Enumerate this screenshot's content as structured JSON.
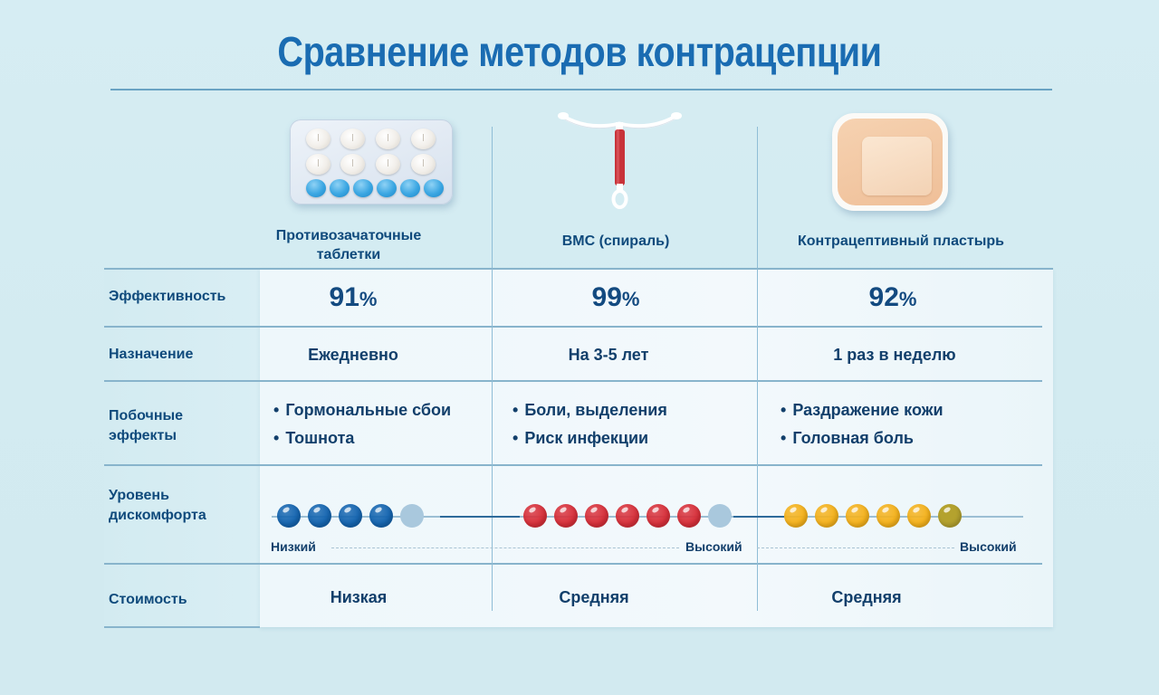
{
  "title": "Сравнение методов контрацепции",
  "methods": [
    {
      "name_line1": "Противозачаточные",
      "name_line2": "таблетки",
      "icon": "pill-blister-icon"
    },
    {
      "name_line1": "ВМС (спираль)",
      "name_line2": "",
      "icon": "iud-icon"
    },
    {
      "name_line1": "Контрацептивный пластырь",
      "name_line2": "",
      "icon": "patch-icon"
    }
  ],
  "rows": {
    "effectiveness": {
      "label": "Эффективность",
      "values": [
        {
          "num": "91",
          "sym": "%"
        },
        {
          "num": "99",
          "sym": "%"
        },
        {
          "num": "92",
          "sym": "%"
        }
      ]
    },
    "usage": {
      "label": "Назначение",
      "values": [
        "Ежедневно",
        "На 3-5 лет",
        "1 раз в неделю"
      ]
    },
    "side_effects": {
      "label_line1": "Побочные",
      "label_line2": "эффекты",
      "values": [
        [
          "Гормональные сбои",
          "Тошнота"
        ],
        [
          "Боли, выделения",
          "Риск инфекции"
        ],
        [
          "Раздражение кожи",
          "Головная боль"
        ]
      ]
    },
    "discomfort": {
      "label_line1": "Уровень",
      "label_line2": "дискомфорта",
      "low_label": "Низкий",
      "high_label": "Высокий",
      "levels": [
        {
          "filled": 4,
          "total": 5,
          "color": "#1565b0",
          "faded_color": "#a9c8dd"
        },
        {
          "filled": 6,
          "total": 7,
          "color": "#d8303a",
          "faded_color": "#a9c8dd"
        },
        {
          "filled": 5,
          "total": 6,
          "color": "#f5b21c",
          "faded_color": "#b4a22e"
        }
      ]
    },
    "cost": {
      "label": "Стоимость",
      "values": [
        "Низкая",
        "Средняя",
        "Средняя"
      ]
    }
  },
  "colors": {
    "title": "#1a6cb2",
    "text": "#0f4a7c",
    "background": "#d4ecf2",
    "rule": "#88b4cc"
  }
}
